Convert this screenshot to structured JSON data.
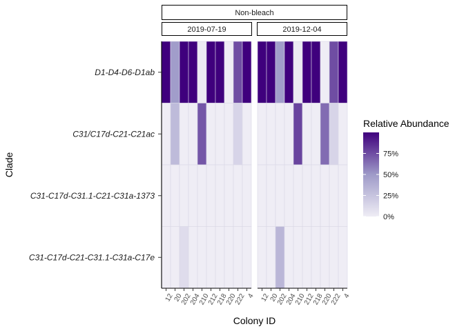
{
  "chart_data": {
    "type": "heatmap",
    "facet_top_label": "Non-bleach",
    "xlabel": "Colony ID",
    "ylabel": "Clade",
    "legend": {
      "title": "Relative Abundance",
      "ticks": [
        "0%",
        "25%",
        "50%",
        "75%"
      ],
      "tick_values": [
        0,
        25,
        50,
        75
      ],
      "range": [
        0,
        100
      ],
      "color_low": "#efedf5",
      "color_high": "#3f007d",
      "placement": "right"
    },
    "colony_ids": [
      "12",
      "20",
      "202",
      "204",
      "210",
      "212",
      "218",
      "220",
      "222",
      "4"
    ],
    "clades": [
      "D1-D4-D6-D1ab",
      "C31/C17d-C21-C21ac",
      "C31-C17d-C31.1-C21-C31a-1373",
      "C31-C17d-C21-C31.1-C31a-C17e"
    ],
    "panels": [
      {
        "date": "2019-07-19",
        "values": [
          [
            100,
            48,
            100,
            100,
            2,
            100,
            100,
            0,
            75,
            100
          ],
          [
            0,
            30,
            0,
            0,
            72,
            0,
            0,
            0,
            15,
            0
          ],
          [
            0,
            0,
            0,
            0,
            0,
            0,
            0,
            0,
            0,
            0
          ],
          [
            0,
            0,
            10,
            0,
            0,
            0,
            0,
            0,
            0,
            0
          ]
        ]
      },
      {
        "date": "2019-12-04",
        "values": [
          [
            100,
            100,
            48,
            100,
            2,
            100,
            100,
            0,
            75,
            100
          ],
          [
            0,
            0,
            0,
            0,
            78,
            0,
            0,
            65,
            15,
            0
          ],
          [
            0,
            0,
            0,
            0,
            0,
            0,
            0,
            0,
            0,
            0
          ],
          [
            0,
            0,
            33,
            0,
            0,
            0,
            0,
            0,
            0,
            0
          ]
        ]
      }
    ]
  }
}
